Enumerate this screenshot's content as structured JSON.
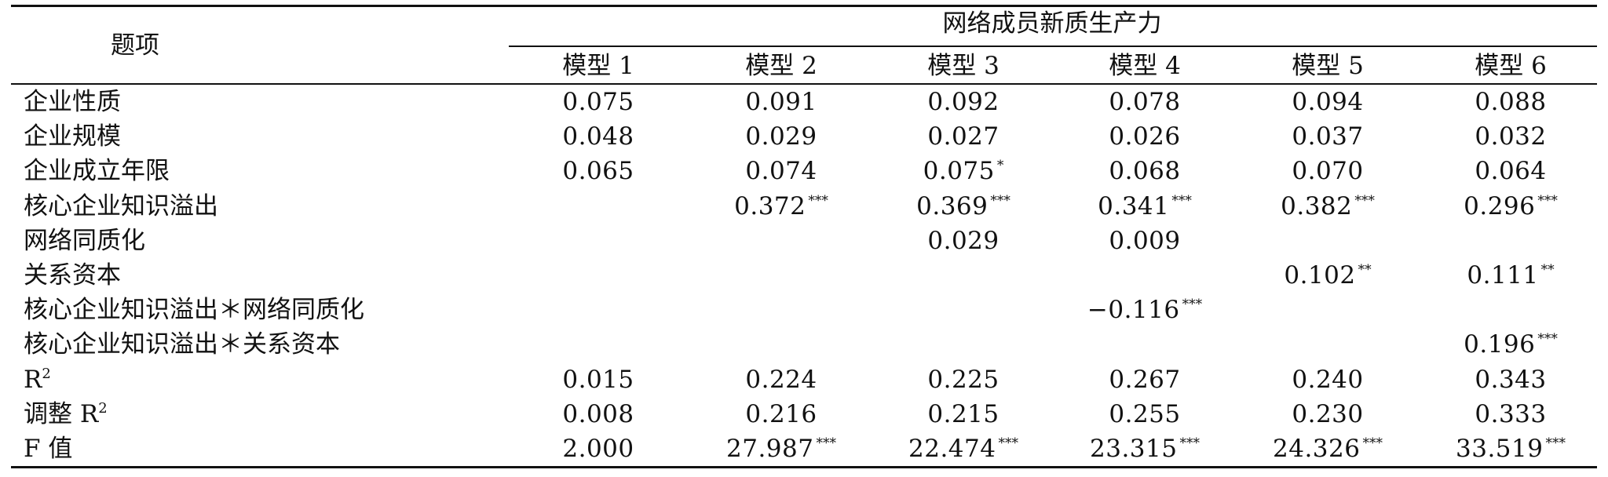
{
  "table": {
    "item_header": "题项",
    "group_header": "网络成员新质生产力",
    "models": [
      "模型 1",
      "模型 2",
      "模型 3",
      "模型 4",
      "模型 5",
      "模型 6"
    ],
    "rows": [
      {
        "label": "企业性质",
        "cells": [
          {
            "v": "0.075",
            "s": ""
          },
          {
            "v": "0.091",
            "s": ""
          },
          {
            "v": "0.092",
            "s": ""
          },
          {
            "v": "0.078",
            "s": ""
          },
          {
            "v": "0.094",
            "s": ""
          },
          {
            "v": "0.088",
            "s": ""
          }
        ]
      },
      {
        "label": "企业规模",
        "cells": [
          {
            "v": "0.048",
            "s": ""
          },
          {
            "v": "0.029",
            "s": ""
          },
          {
            "v": "0.027",
            "s": ""
          },
          {
            "v": "0.026",
            "s": ""
          },
          {
            "v": "0.037",
            "s": ""
          },
          {
            "v": "0.032",
            "s": ""
          }
        ]
      },
      {
        "label": "企业成立年限",
        "cells": [
          {
            "v": "0.065",
            "s": ""
          },
          {
            "v": "0.074",
            "s": ""
          },
          {
            "v": "0.075",
            "s": "*"
          },
          {
            "v": "0.068",
            "s": ""
          },
          {
            "v": "0.070",
            "s": ""
          },
          {
            "v": "0.064",
            "s": ""
          }
        ]
      },
      {
        "label": "核心企业知识溢出",
        "cells": [
          {
            "v": "",
            "s": ""
          },
          {
            "v": "0.372",
            "s": "***"
          },
          {
            "v": "0.369",
            "s": "***"
          },
          {
            "v": "0.341",
            "s": "***"
          },
          {
            "v": "0.382",
            "s": "***"
          },
          {
            "v": "0.296",
            "s": "***"
          }
        ]
      },
      {
        "label": "网络同质化",
        "cells": [
          {
            "v": "",
            "s": ""
          },
          {
            "v": "",
            "s": ""
          },
          {
            "v": "0.029",
            "s": ""
          },
          {
            "v": "0.009",
            "s": ""
          },
          {
            "v": "",
            "s": ""
          },
          {
            "v": "",
            "s": ""
          }
        ]
      },
      {
        "label": "关系资本",
        "cells": [
          {
            "v": "",
            "s": ""
          },
          {
            "v": "",
            "s": ""
          },
          {
            "v": "",
            "s": ""
          },
          {
            "v": "",
            "s": ""
          },
          {
            "v": "0.102",
            "s": "**"
          },
          {
            "v": "0.111",
            "s": "**"
          }
        ]
      },
      {
        "label": "核心企业知识溢出＊网络同质化",
        "cells": [
          {
            "v": "",
            "s": ""
          },
          {
            "v": "",
            "s": ""
          },
          {
            "v": "",
            "s": ""
          },
          {
            "v": "−0.116",
            "s": "***"
          },
          {
            "v": "",
            "s": ""
          },
          {
            "v": "",
            "s": ""
          }
        ]
      },
      {
        "label": "核心企业知识溢出＊关系资本",
        "cells": [
          {
            "v": "",
            "s": ""
          },
          {
            "v": "",
            "s": ""
          },
          {
            "v": "",
            "s": ""
          },
          {
            "v": "",
            "s": ""
          },
          {
            "v": "",
            "s": ""
          },
          {
            "v": "0.196",
            "s": "***"
          }
        ]
      },
      {
        "label": "R",
        "label_sup": "2",
        "cells": [
          {
            "v": "0.015",
            "s": ""
          },
          {
            "v": "0.224",
            "s": ""
          },
          {
            "v": "0.225",
            "s": ""
          },
          {
            "v": "0.267",
            "s": ""
          },
          {
            "v": "0.240",
            "s": ""
          },
          {
            "v": "0.343",
            "s": ""
          }
        ]
      },
      {
        "label": "调整 R",
        "label_sup": "2",
        "cells": [
          {
            "v": "0.008",
            "s": ""
          },
          {
            "v": "0.216",
            "s": ""
          },
          {
            "v": "0.215",
            "s": ""
          },
          {
            "v": "0.255",
            "s": ""
          },
          {
            "v": "0.230",
            "s": ""
          },
          {
            "v": "0.333",
            "s": ""
          }
        ]
      },
      {
        "label": "F 值",
        "cells": [
          {
            "v": "2.000",
            "s": ""
          },
          {
            "v": "27.987",
            "s": "***"
          },
          {
            "v": "22.474",
            "s": "***"
          },
          {
            "v": "23.315",
            "s": "***"
          },
          {
            "v": "24.326",
            "s": "***"
          },
          {
            "v": "33.519",
            "s": "***"
          }
        ]
      }
    ]
  }
}
